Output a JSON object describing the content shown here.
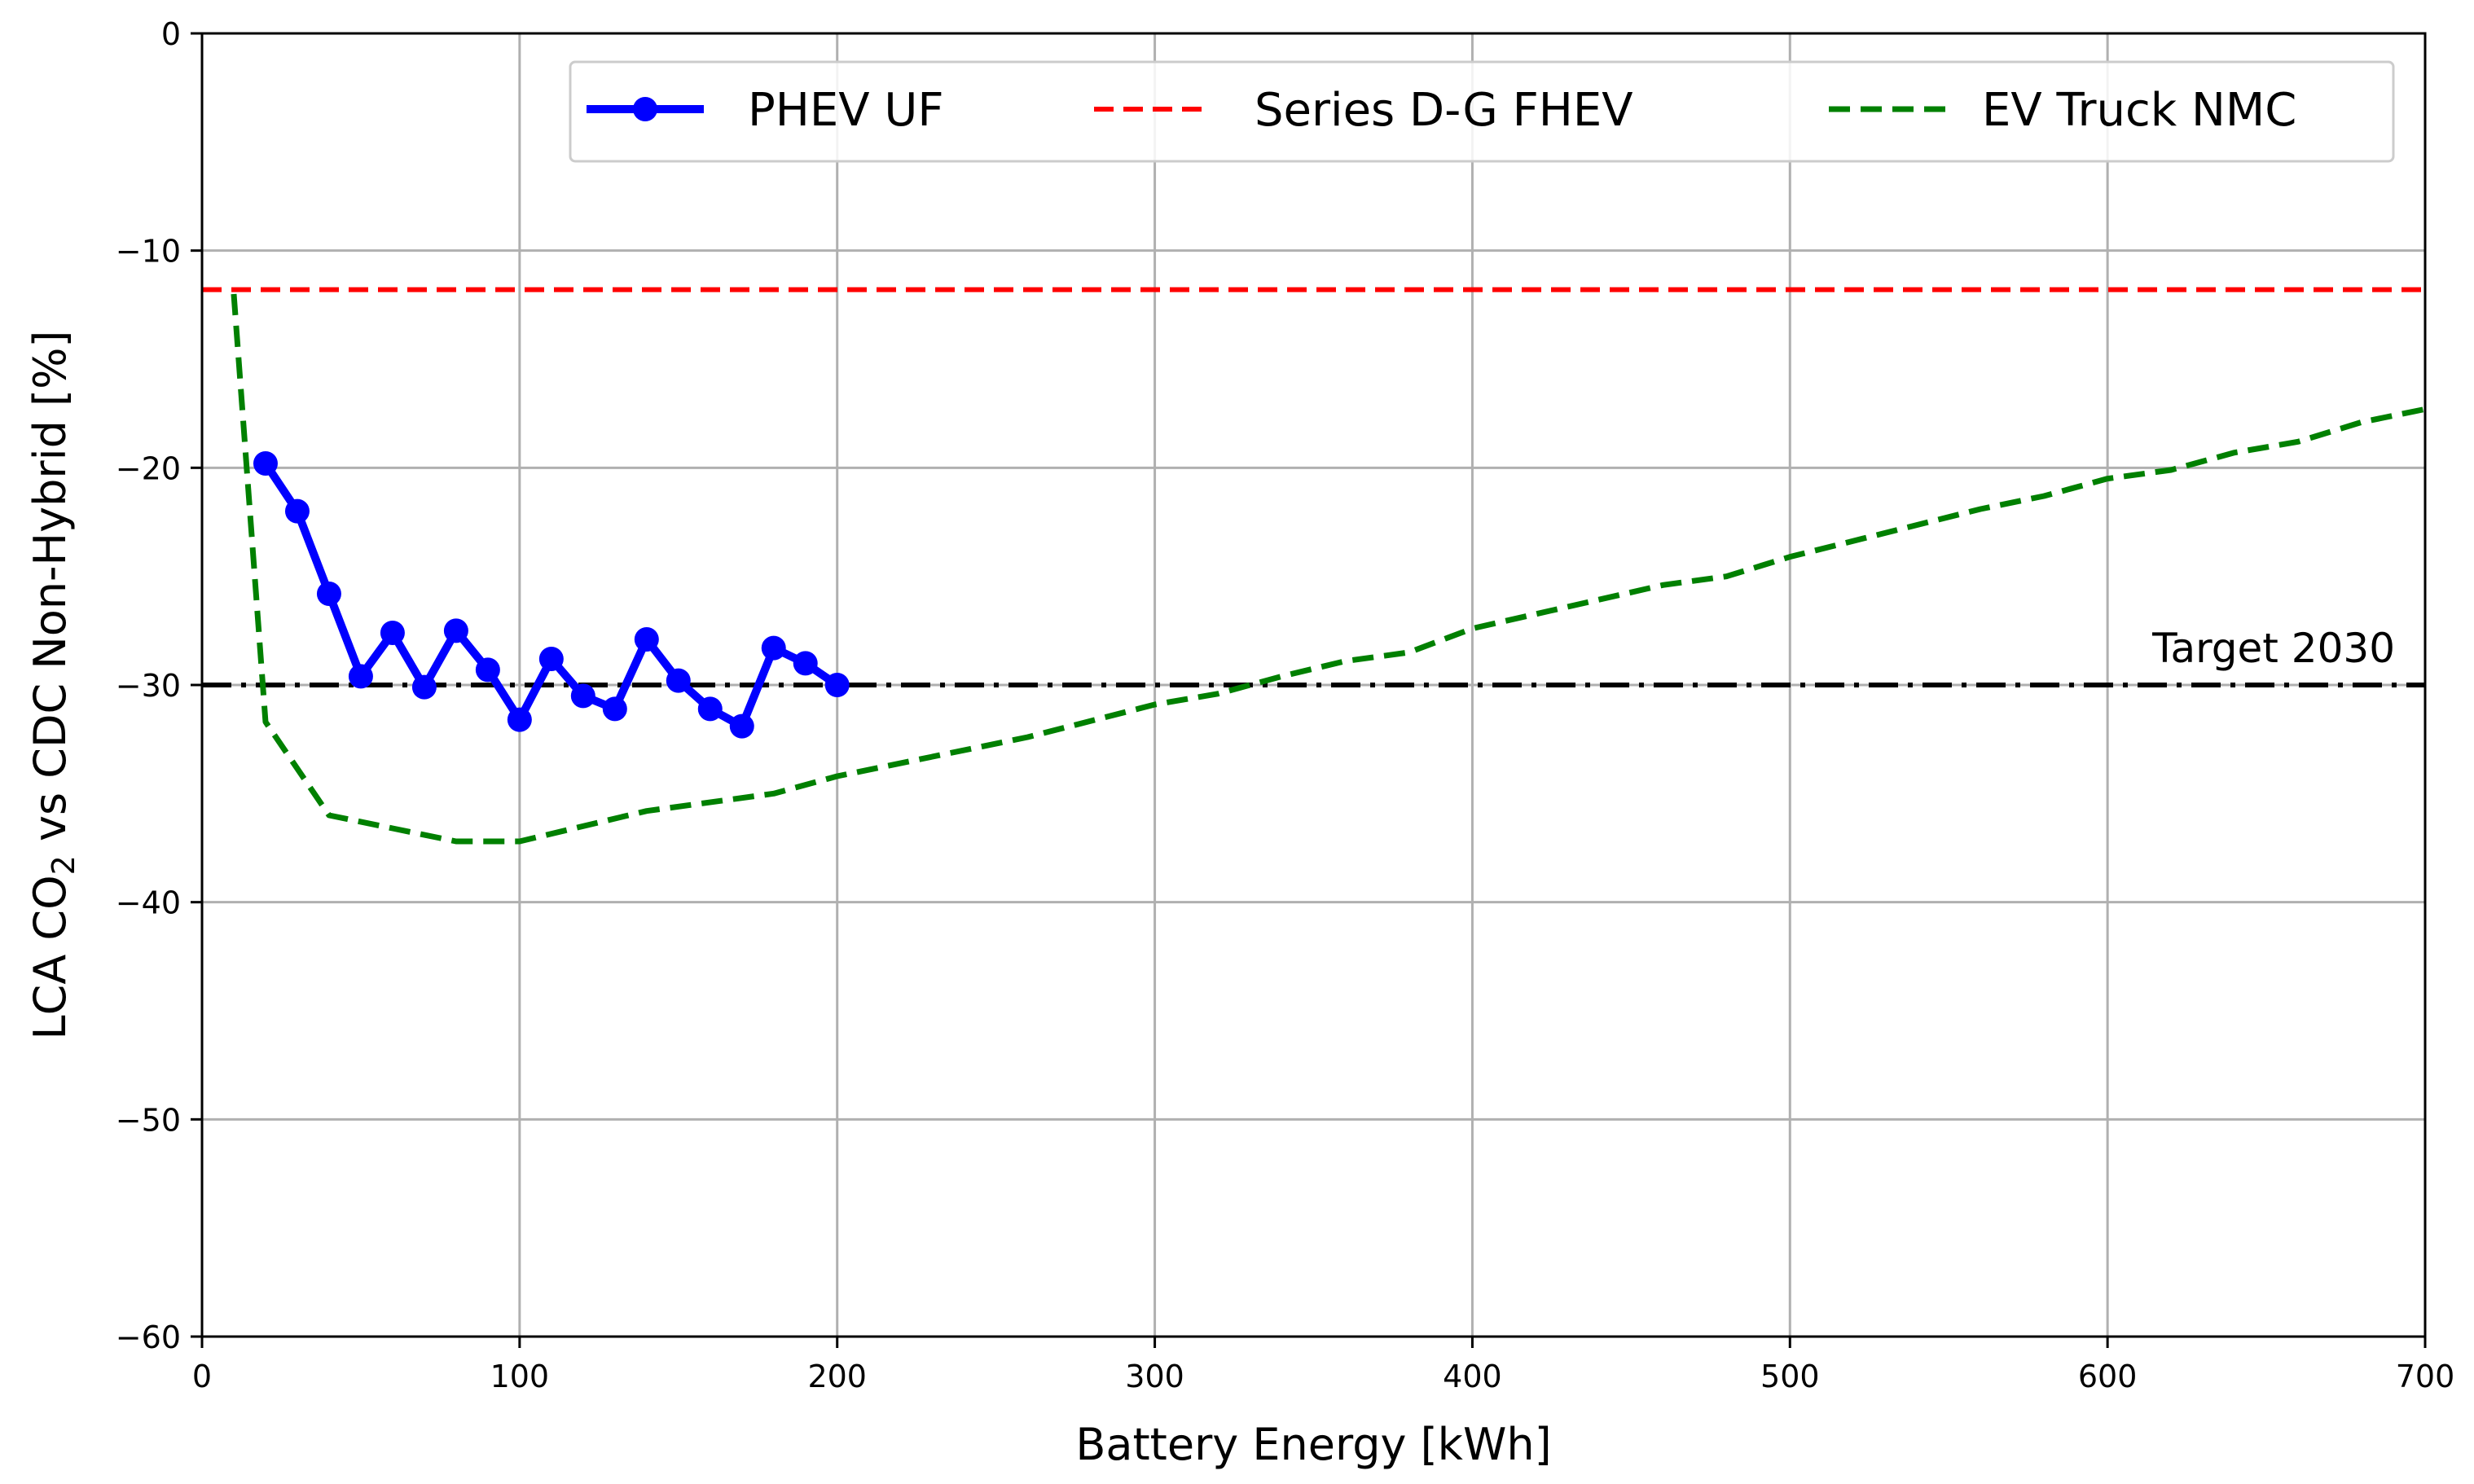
{
  "chart_data": {
    "type": "line",
    "xlabel": "Battery Energy [kWh]",
    "ylabel_parts": [
      "LCA CO",
      "2",
      " vs CDC Non-Hybrid [%]"
    ],
    "xlim": [
      0,
      700
    ],
    "ylim": [
      -60,
      0
    ],
    "xticks": [
      0,
      100,
      200,
      300,
      400,
      500,
      600,
      700
    ],
    "yticks": [
      0,
      -10,
      -20,
      -30,
      -40,
      -50,
      -60
    ],
    "xtick_labels": [
      "0",
      "100",
      "200",
      "300",
      "400",
      "500",
      "600",
      "700"
    ],
    "ytick_labels": [
      "0",
      "−10",
      "−20",
      "−30",
      "−40",
      "−50",
      "−60"
    ],
    "grid": true,
    "legend_position": "top-right",
    "series": [
      {
        "name": "PHEV UF",
        "color": "#0000ff",
        "style": "solid-markers",
        "x": [
          20,
          30,
          40,
          50,
          60,
          70,
          80,
          90,
          100,
          110,
          120,
          130,
          140,
          150,
          160,
          170,
          180,
          190,
          200
        ],
        "y": [
          -19.8,
          -22.0,
          -25.8,
          -29.6,
          -27.6,
          -30.1,
          -27.5,
          -29.3,
          -31.6,
          -28.8,
          -30.5,
          -31.1,
          -27.9,
          -29.8,
          -31.1,
          -31.9,
          -28.3,
          -29.0,
          -30.0
        ]
      },
      {
        "name": "Series D-G FHEV",
        "color": "#ff0000",
        "style": "dashed",
        "x": [
          0,
          700
        ],
        "y": [
          -11.8,
          -11.8
        ]
      },
      {
        "name": "EV Truck NMC",
        "color": "#008000",
        "style": "dashed",
        "x": [
          10,
          20,
          40,
          60,
          80,
          100,
          140,
          180,
          200,
          260,
          300,
          320,
          340,
          360,
          380,
          400,
          460,
          480,
          500,
          560,
          580,
          600,
          620,
          640,
          660,
          680,
          700
        ],
        "y": [
          -12.0,
          -31.7,
          -36.0,
          -36.6,
          -37.2,
          -37.2,
          -35.8,
          -35.0,
          -34.2,
          -32.4,
          -30.9,
          -30.4,
          -29.6,
          -28.9,
          -28.5,
          -27.4,
          -25.4,
          -25.0,
          -24.1,
          -21.9,
          -21.3,
          -20.5,
          -20.1,
          -19.3,
          -18.8,
          -17.9,
          -17.3
        ]
      }
    ],
    "reference_line": {
      "label": "Target 2030",
      "y": -30,
      "color": "#000000",
      "style": "dash-dot"
    }
  }
}
